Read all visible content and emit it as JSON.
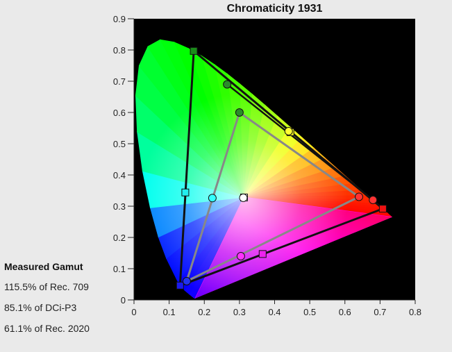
{
  "chart_data": {
    "type": "scatter",
    "title": "Chromaticity 1931",
    "xlabel": "",
    "ylabel": "",
    "xlim": [
      0,
      0.8
    ],
    "ylim": [
      0,
      0.9
    ],
    "x_ticks": [
      "0",
      "0.1",
      "0.2",
      "0.3",
      "0.4",
      "0.5",
      "0.6",
      "0.7",
      "0.8"
    ],
    "y_ticks": [
      "0",
      "0.1",
      "0.2",
      "0.3",
      "0.4",
      "0.5",
      "0.6",
      "0.7",
      "0.8",
      "0.9"
    ],
    "series": [
      {
        "style": "outer-triangle-squares",
        "points": [
          {
            "x": 0.17,
            "y": 0.797,
            "color": "#1a8c1a"
          },
          {
            "x": 0.708,
            "y": 0.292,
            "color": "#ee1111"
          },
          {
            "x": 0.131,
            "y": 0.046,
            "color": "#1a1aee"
          }
        ],
        "line_color": "#111111"
      },
      {
        "style": "dcip3-triangle-circles",
        "points": [
          {
            "x": 0.265,
            "y": 0.69,
            "color": "#2a8c2a"
          },
          {
            "x": 0.68,
            "y": 0.32,
            "color": "#ff3333"
          },
          {
            "x": 0.15,
            "y": 0.06,
            "color": "#2233ee"
          }
        ],
        "line_color": "#111111"
      },
      {
        "style": "rec709-triangle-circles",
        "points": [
          {
            "x": 0.3,
            "y": 0.6,
            "color": "#2a8c2a"
          },
          {
            "x": 0.64,
            "y": 0.33,
            "color": "#ff3333"
          },
          {
            "x": 0.15,
            "y": 0.06,
            "color": "#2233ee"
          }
        ],
        "line_color": "#888888"
      },
      {
        "style": "secondary-squares",
        "points": [
          {
            "x": 0.445,
            "y": 0.537,
            "color": "#eeee22"
          },
          {
            "x": 0.146,
            "y": 0.344,
            "color": "#22eeee"
          },
          {
            "x": 0.366,
            "y": 0.147,
            "color": "#ee22ee"
          },
          {
            "x": 0.313,
            "y": 0.328,
            "color": "#ffffff"
          }
        ]
      },
      {
        "style": "secondary-circles",
        "points": [
          {
            "x": 0.44,
            "y": 0.54,
            "color": "#ffff33"
          },
          {
            "x": 0.223,
            "y": 0.326,
            "color": "#33ffff"
          },
          {
            "x": 0.304,
            "y": 0.14,
            "color": "#ff33ff"
          },
          {
            "x": 0.311,
            "y": 0.327,
            "color": "#ffffff"
          }
        ]
      }
    ],
    "grid": false,
    "legend": "none"
  },
  "gamut": {
    "heading": "Measured Gamut",
    "lines": [
      "115.5% of Rec. 709",
      "85.1% of DCi-P3",
      "61.1% of Rec. 2020"
    ]
  }
}
